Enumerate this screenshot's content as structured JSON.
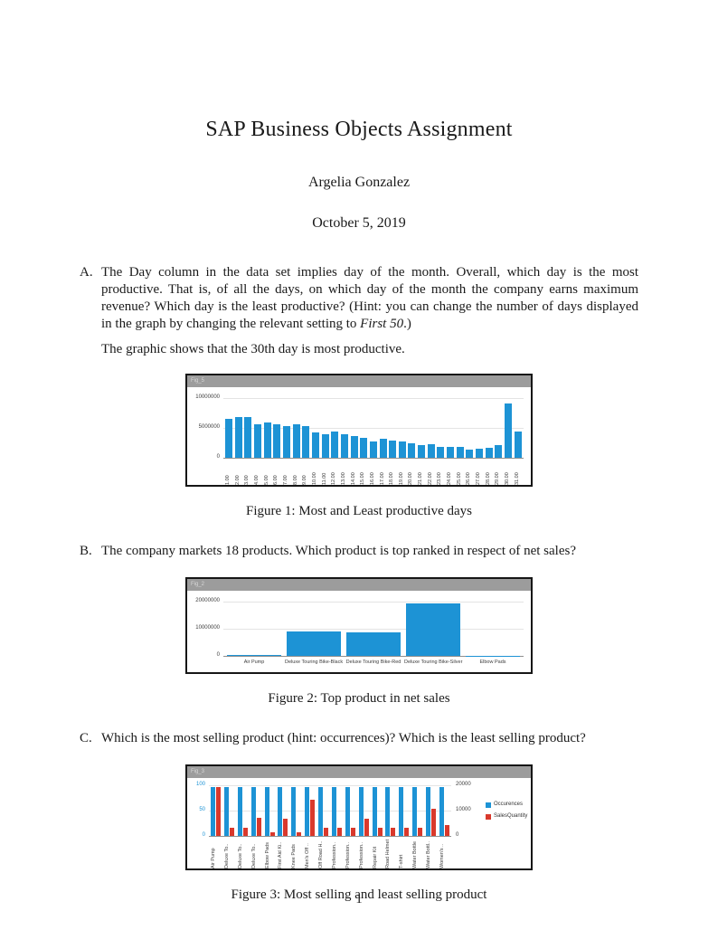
{
  "document": {
    "title": "SAP Business Objects Assignment",
    "author": "Argelia Gonzalez",
    "date": "October 5, 2019",
    "page_number": "1",
    "items": {
      "a": {
        "label": "A.",
        "text_before": "The Day column in the data set implies day of the month. Overall, which day is the most productive. That is, of all the days, on which day of the month the company earns maximum revenue? Which day is the least productive? (Hint: you can change the number of days displayed in the graph by changing the relevant setting to ",
        "text_italic": "First 50",
        "text_after": ".)",
        "answer": "The graphic shows that the 30th day is most productive."
      },
      "b": {
        "label": "B.",
        "text": "The company markets 18 products. Which product is top ranked in respect of net sales?"
      },
      "c": {
        "label": "C.",
        "text": "Which is the most selling product (hint: occurrences)? Which is the least selling product?"
      }
    },
    "captions": [
      "Figure 1: Most and Least productive days",
      "Figure 2: Top product in net sales",
      "Figure 3: Most selling and least selling product"
    ]
  },
  "colors": {
    "bar_blue": "#1d93d5",
    "bar_red": "#d9392c",
    "chart_header_gray": "#9c9c9c"
  },
  "chart_data": [
    {
      "type": "bar",
      "block_label": "Fig_5",
      "categories": [
        "1.00",
        "2.00",
        "3.00",
        "4.00",
        "5.00",
        "6.00",
        "7.00",
        "8.00",
        "9.00",
        "10.00",
        "11.00",
        "12.00",
        "13.00",
        "14.00",
        "15.00",
        "16.00",
        "17.00",
        "18.00",
        "19.00",
        "20.00",
        "21.00",
        "22.00",
        "23.00",
        "24.00",
        "25.00",
        "26.00",
        "27.00",
        "28.00",
        "29.00",
        "30.00",
        "31.00"
      ],
      "values": [
        6500000,
        6800000,
        6800000,
        5600000,
        5900000,
        5700000,
        5300000,
        5700000,
        5400000,
        4300000,
        4000000,
        4400000,
        4000000,
        3600000,
        3400000,
        2800000,
        3200000,
        2900000,
        2800000,
        2400000,
        2200000,
        2300000,
        1900000,
        1900000,
        1800000,
        1400000,
        1600000,
        1700000,
        2100000,
        9200000,
        4500000
      ],
      "color": "#1d93d5",
      "ylim": [
        0,
        10000000
      ],
      "yticks": [
        0,
        5000000,
        10000000
      ],
      "grid": true,
      "x_rotated": true
    },
    {
      "type": "bar",
      "block_label": "Fig_2",
      "categories": [
        "Air Pump",
        "Deluxe Touring Bike-Black",
        "Deluxe Touring Bike-Red",
        "Deluxe Touring Bike-Silver",
        "Elbow Pads"
      ],
      "values": [
        400000,
        9200000,
        8800000,
        19500000,
        150000
      ],
      "color": "#1d93d5",
      "ylim": [
        0,
        20000000
      ],
      "yticks": [
        0,
        10000000,
        20000000
      ],
      "grid": true,
      "x_rotated": false
    },
    {
      "type": "bar-dual-axis",
      "block_label": "Fig_3",
      "categories": [
        "Air Pump",
        "Deluxe To..",
        "Deluxe To..",
        "Deluxe To..",
        "Elbow Pads",
        "First Aid Ki..",
        "Knee Pads",
        "Men's Off ..",
        "Off Road H..",
        "Profession..",
        "Profession..",
        "Profession..",
        "Repair Kit",
        "Road Helmet",
        "T-shirt",
        "Water Bottle",
        "Water Bottl..",
        "Women's .."
      ],
      "series": [
        {
          "name": "Occurences",
          "color": "#1d93d5",
          "axis": "left",
          "values": [
            97,
            97,
            97,
            97,
            97,
            97,
            97,
            97,
            97,
            97,
            97,
            97,
            97,
            97,
            97,
            97,
            97,
            97
          ]
        },
        {
          "name": "SalesQuantity",
          "color": "#d9392c",
          "axis": "right",
          "values": [
            19400,
            3400,
            3400,
            7400,
            1600,
            7000,
            1600,
            14600,
            3400,
            3400,
            3400,
            7000,
            3400,
            3400,
            3400,
            3400,
            11000,
            4400
          ]
        }
      ],
      "left_axis": {
        "max": 100,
        "ticks": [
          0,
          50,
          100
        ],
        "color": "#1d93d5"
      },
      "right_axis": {
        "max": 20000,
        "ticks": [
          0,
          10000,
          20000
        ],
        "color": "#3c3c3c"
      },
      "legend_position": "right",
      "x_rotated": true
    }
  ]
}
